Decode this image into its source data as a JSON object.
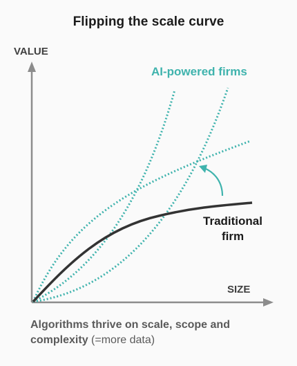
{
  "title": "Flipping the scale curve",
  "axes": {
    "y_label": "VALUE",
    "x_label": "SIZE"
  },
  "series": {
    "ai_label": "AI-powered firms",
    "traditional_line1": "Traditional",
    "traditional_line2": "firm"
  },
  "caption": {
    "bold_part1": "Algorithms thrive on scale, scope and",
    "bold_part2": "complexity",
    "normal_part": " (=more data)"
  },
  "colors": {
    "ai_series": "#3fb3ad",
    "traditional_series": "#333333",
    "axis": "#8c8c8c"
  }
}
